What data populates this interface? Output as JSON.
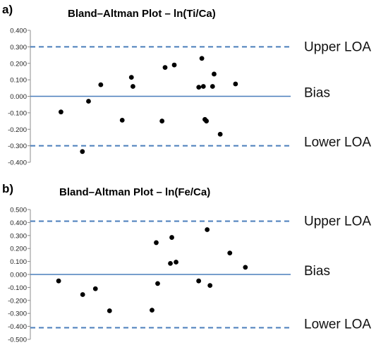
{
  "chart_data": [
    {
      "type": "scatter",
      "panel": "a)",
      "title": "Bland–Altman Plot – ln(Ti/Ca)",
      "xlabel": "",
      "ylabel": "",
      "ylim": [
        -0.4,
        0.4
      ],
      "yticks": [
        "0.400",
        "0.300",
        "0.200",
        "0.100",
        "0.000",
        "-0.100",
        "-0.200",
        "-0.300",
        "-0.400"
      ],
      "grid": false,
      "bias": 0.0,
      "upper_loa": 0.3,
      "lower_loa": -0.3,
      "labels": {
        "upper": "Upper LOA",
        "bias": "Bias",
        "lower": "Lower LOA"
      },
      "colors": {
        "points": "#000000",
        "bias_line": "#4a7ebb",
        "loa_line": "#4a7ebb"
      },
      "points": [
        {
          "x": 1.0,
          "y": -0.095
        },
        {
          "x": 1.7,
          "y": -0.335
        },
        {
          "x": 1.9,
          "y": -0.03
        },
        {
          "x": 2.3,
          "y": 0.07
        },
        {
          "x": 3.0,
          "y": -0.145
        },
        {
          "x": 3.3,
          "y": 0.115
        },
        {
          "x": 3.35,
          "y": 0.06
        },
        {
          "x": 4.3,
          "y": -0.15
        },
        {
          "x": 4.4,
          "y": 0.175
        },
        {
          "x": 4.7,
          "y": 0.19
        },
        {
          "x": 5.5,
          "y": 0.055
        },
        {
          "x": 5.6,
          "y": 0.23
        },
        {
          "x": 5.65,
          "y": 0.06
        },
        {
          "x": 5.7,
          "y": -0.14
        },
        {
          "x": 5.75,
          "y": -0.15
        },
        {
          "x": 6.0,
          "y": 0.135
        },
        {
          "x": 5.95,
          "y": 0.06
        },
        {
          "x": 6.2,
          "y": -0.23
        },
        {
          "x": 6.7,
          "y": 0.075
        }
      ]
    },
    {
      "type": "scatter",
      "panel": "b)",
      "title": "Bland–Altman Plot  – ln(Fe/Ca)",
      "xlabel": "",
      "ylabel": "",
      "ylim": [
        -0.5,
        0.5
      ],
      "yticks": [
        "0.500",
        "0.400",
        "0.300",
        "0.200",
        "0.100",
        "0.000",
        "-0.100",
        "-0.200",
        "-0.300",
        "-0.400",
        "-0.500"
      ],
      "grid": false,
      "bias": 0.0,
      "upper_loa": 0.41,
      "lower_loa": -0.41,
      "labels": {
        "upper": "Upper LOA",
        "bias": "Bias",
        "lower": "Lower LOA"
      },
      "colors": {
        "points": "#000000",
        "bias_line": "#4a7ebb",
        "loa_line": "#4a7ebb"
      },
      "points": [
        {
          "x": 1.0,
          "y": -0.05
        },
        {
          "x": 1.85,
          "y": -0.155
        },
        {
          "x": 2.3,
          "y": -0.11
        },
        {
          "x": 2.8,
          "y": -0.28
        },
        {
          "x": 4.3,
          "y": -0.275
        },
        {
          "x": 4.45,
          "y": 0.245
        },
        {
          "x": 4.5,
          "y": -0.07
        },
        {
          "x": 4.95,
          "y": 0.085
        },
        {
          "x": 5.0,
          "y": 0.285
        },
        {
          "x": 5.15,
          "y": 0.095
        },
        {
          "x": 5.95,
          "y": -0.05
        },
        {
          "x": 6.25,
          "y": 0.345
        },
        {
          "x": 6.35,
          "y": -0.085
        },
        {
          "x": 7.05,
          "y": 0.165
        },
        {
          "x": 7.6,
          "y": 0.055
        }
      ]
    }
  ]
}
